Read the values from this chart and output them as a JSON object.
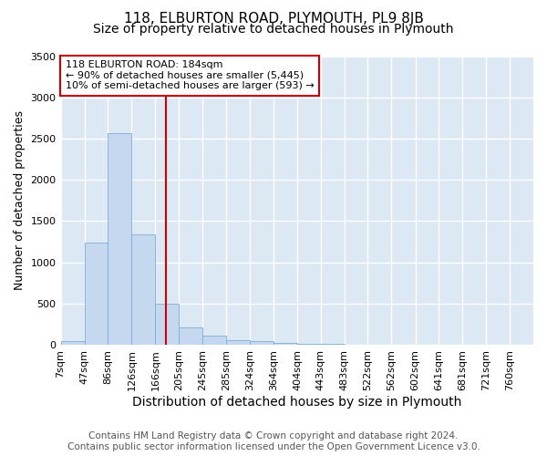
{
  "title": "118, ELBURTON ROAD, PLYMOUTH, PL9 8JB",
  "subtitle": "Size of property relative to detached houses in Plymouth",
  "xlabel": "Distribution of detached houses by size in Plymouth",
  "ylabel": "Number of detached properties",
  "footnote1": "Contains HM Land Registry data © Crown copyright and database right 2024.",
  "footnote2": "Contains public sector information licensed under the Open Government Licence v3.0.",
  "annotation_line1": "118 ELBURTON ROAD: 184sqm",
  "annotation_line2": "← 90% of detached houses are smaller (5,445)",
  "annotation_line3": "10% of semi-detached houses are larger (593) →",
  "bin_edges": [
    7,
    47,
    86,
    126,
    166,
    205,
    245,
    285,
    324,
    364,
    404,
    443,
    483,
    522,
    562,
    602,
    641,
    681,
    721,
    760,
    800
  ],
  "bar_heights": [
    50,
    1240,
    2570,
    1340,
    500,
    215,
    110,
    55,
    40,
    25,
    10,
    8,
    5,
    3,
    2,
    2,
    2,
    1,
    1,
    1
  ],
  "bar_color": "#c5d8ef",
  "bar_edge_color": "#7aadd4",
  "vline_color": "#cc0000",
  "vline_x": 184,
  "ylim": [
    0,
    3500
  ],
  "yticks": [
    0,
    500,
    1000,
    1500,
    2000,
    2500,
    3000,
    3500
  ],
  "plot_bg_color": "#dde8f5",
  "fig_bg_color": "#ffffff",
  "grid_color": "#ffffff",
  "annotation_box_facecolor": "#ffffff",
  "annotation_box_edgecolor": "#cc0000",
  "title_fontsize": 11,
  "subtitle_fontsize": 10,
  "ylabel_fontsize": 9,
  "xlabel_fontsize": 10,
  "tick_fontsize": 8,
  "annotation_fontsize": 8,
  "footnote_fontsize": 7.5
}
